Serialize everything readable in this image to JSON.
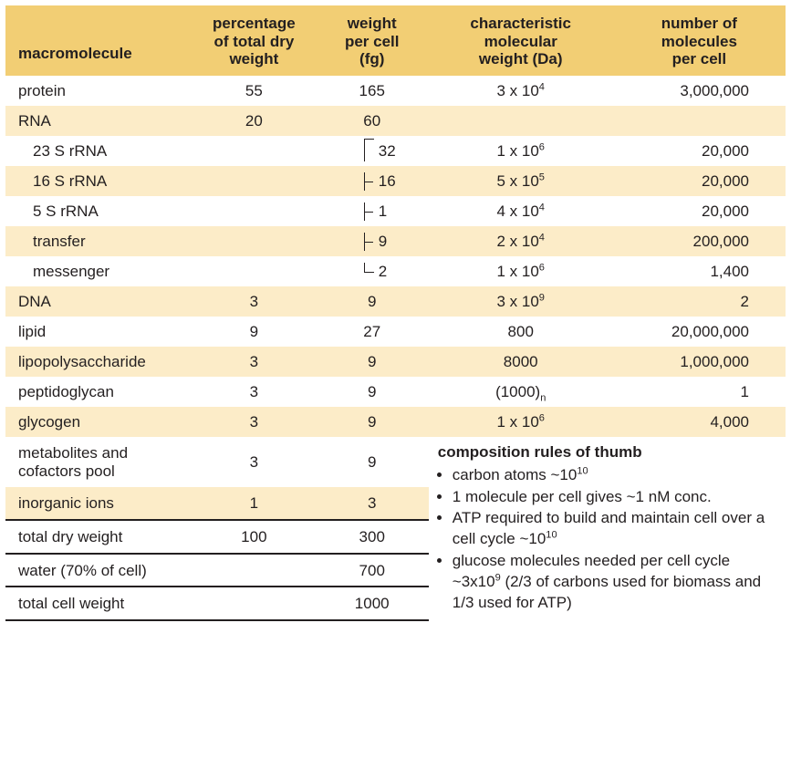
{
  "colors": {
    "header_bg": "#f2ce74",
    "shade_bg": "#fcecc8",
    "text": "#231f20",
    "rule": "#231f20"
  },
  "headers": {
    "c1": "macromolecule",
    "c2": "percentage\nof total dry\nweight",
    "c3": "weight\nper cell\n(fg)",
    "c4": "characteristic\nmolecular\nweight (Da)",
    "c5": "number of\nmolecules\nper cell"
  },
  "rows": [
    {
      "name": "protein",
      "pct": "55",
      "wt": "165",
      "mw": "3 x 10^4",
      "n": "3,000,000",
      "shade": false
    },
    {
      "name": "RNA",
      "pct": "20",
      "wt": "60",
      "mw": "",
      "n": "",
      "shade": true
    },
    {
      "name": "23 S rRNA",
      "pct": "",
      "wt": "32",
      "mw": "1 x 10^6",
      "n": "20,000",
      "shade": false,
      "indent": true,
      "bracket": "top"
    },
    {
      "name": "16 S rRNA",
      "pct": "",
      "wt": "16",
      "mw": "5 x 10^5",
      "n": "20,000",
      "shade": true,
      "indent": true,
      "bracket": "mid"
    },
    {
      "name": "5 S rRNA",
      "pct": "",
      "wt": "1",
      "mw": "4 x 10^4",
      "n": "20,000",
      "shade": false,
      "indent": true,
      "bracket": "mid"
    },
    {
      "name": "transfer",
      "pct": "",
      "wt": "9",
      "mw": "2 x 10^4",
      "n": "200,000",
      "shade": true,
      "indent": true,
      "bracket": "mid"
    },
    {
      "name": "messenger",
      "pct": "",
      "wt": "2",
      "mw": "1 x 10^6",
      "n": "1,400",
      "shade": false,
      "indent": true,
      "bracket": "bot"
    },
    {
      "name": "DNA",
      "pct": "3",
      "wt": "9",
      "mw": "3 x 10^9",
      "n": "2",
      "shade": true
    },
    {
      "name": "lipid",
      "pct": "9",
      "wt": "27",
      "mw": "800",
      "n": "20,000,000",
      "shade": false
    },
    {
      "name": "lipopolysaccharide",
      "pct": "3",
      "wt": "9",
      "mw": "8000",
      "n": "1,000,000",
      "shade": true
    },
    {
      "name": "peptidoglycan",
      "pct": "3",
      "wt": "9",
      "mw": "(1000)_n",
      "n": "1",
      "shade": false
    },
    {
      "name": "glycogen",
      "pct": "3",
      "wt": "9",
      "mw": "1 x 10^6",
      "n": "4,000",
      "shade": true
    },
    {
      "name": "metabolites  and\ncofactors pool",
      "pct": "3",
      "wt": "9",
      "mw": "",
      "n": "",
      "shade": false,
      "notes_start": true
    },
    {
      "name": "inorganic ions",
      "pct": "1",
      "wt": "3",
      "mw": "",
      "n": "",
      "shade": true
    },
    {
      "name": "total dry weight",
      "pct": "100",
      "wt": "300",
      "mw": "",
      "n": "",
      "shade": false,
      "rule": true
    },
    {
      "name": "water (70% of cell)",
      "pct": "",
      "wt": "700",
      "mw": "",
      "n": "",
      "shade": false,
      "rule": true
    },
    {
      "name": "total cell weight",
      "pct": "",
      "wt": "1000",
      "mw": "",
      "n": "",
      "shade": false,
      "rule": true,
      "rulebot": true
    }
  ],
  "notes": {
    "title": "composition rules of thumb",
    "items": [
      "carbon atoms ~10^10",
      "1 molecule per cell gives ~1 nM conc.",
      "ATP required to build and maintain cell over a cell cycle  ~10^10",
      "glucose molecules needed per cell cycle ~3x10^9 (2/3 of carbons used for biomass and 1/3 used for ATP)"
    ]
  }
}
